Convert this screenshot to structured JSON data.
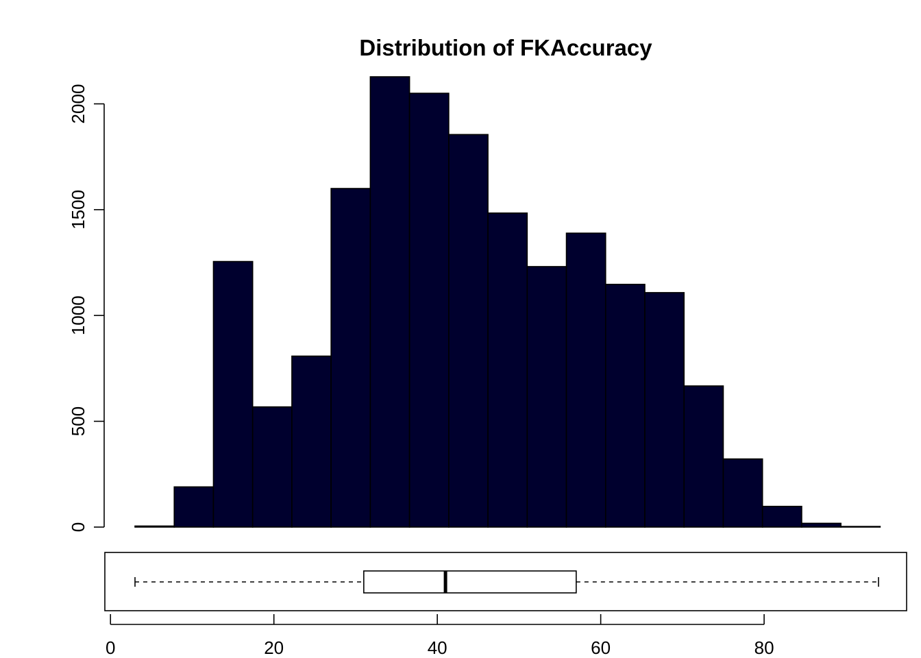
{
  "chart_data": [
    {
      "type": "bar",
      "title": "Distribution of FKAccuracy",
      "xlabel": "",
      "ylabel": "",
      "bin_edges": [
        3.0,
        7.8,
        12.6,
        17.4,
        22.2,
        27.0,
        31.8,
        36.6,
        41.4,
        46.2,
        51.0,
        55.8,
        60.6,
        65.4,
        70.2,
        75.0,
        79.8,
        84.6,
        89.4,
        94.2
      ],
      "values": [
        5,
        190,
        1255,
        568,
        808,
        1600,
        2128,
        2050,
        1855,
        1484,
        1231,
        1389,
        1147,
        1108,
        667,
        322,
        98,
        18,
        3
      ],
      "xlim": [
        3,
        94
      ],
      "ylim": [
        0,
        2128
      ],
      "yticks": [
        0,
        500,
        1000,
        1500,
        2000
      ],
      "bar_color": "#00002e",
      "grid": false
    },
    {
      "type": "boxplot",
      "orientation": "horizontal",
      "min": 3,
      "q1": 31,
      "median": 41,
      "q3": 57,
      "max": 94,
      "xticks": [
        0,
        20,
        40,
        60,
        80
      ]
    }
  ]
}
